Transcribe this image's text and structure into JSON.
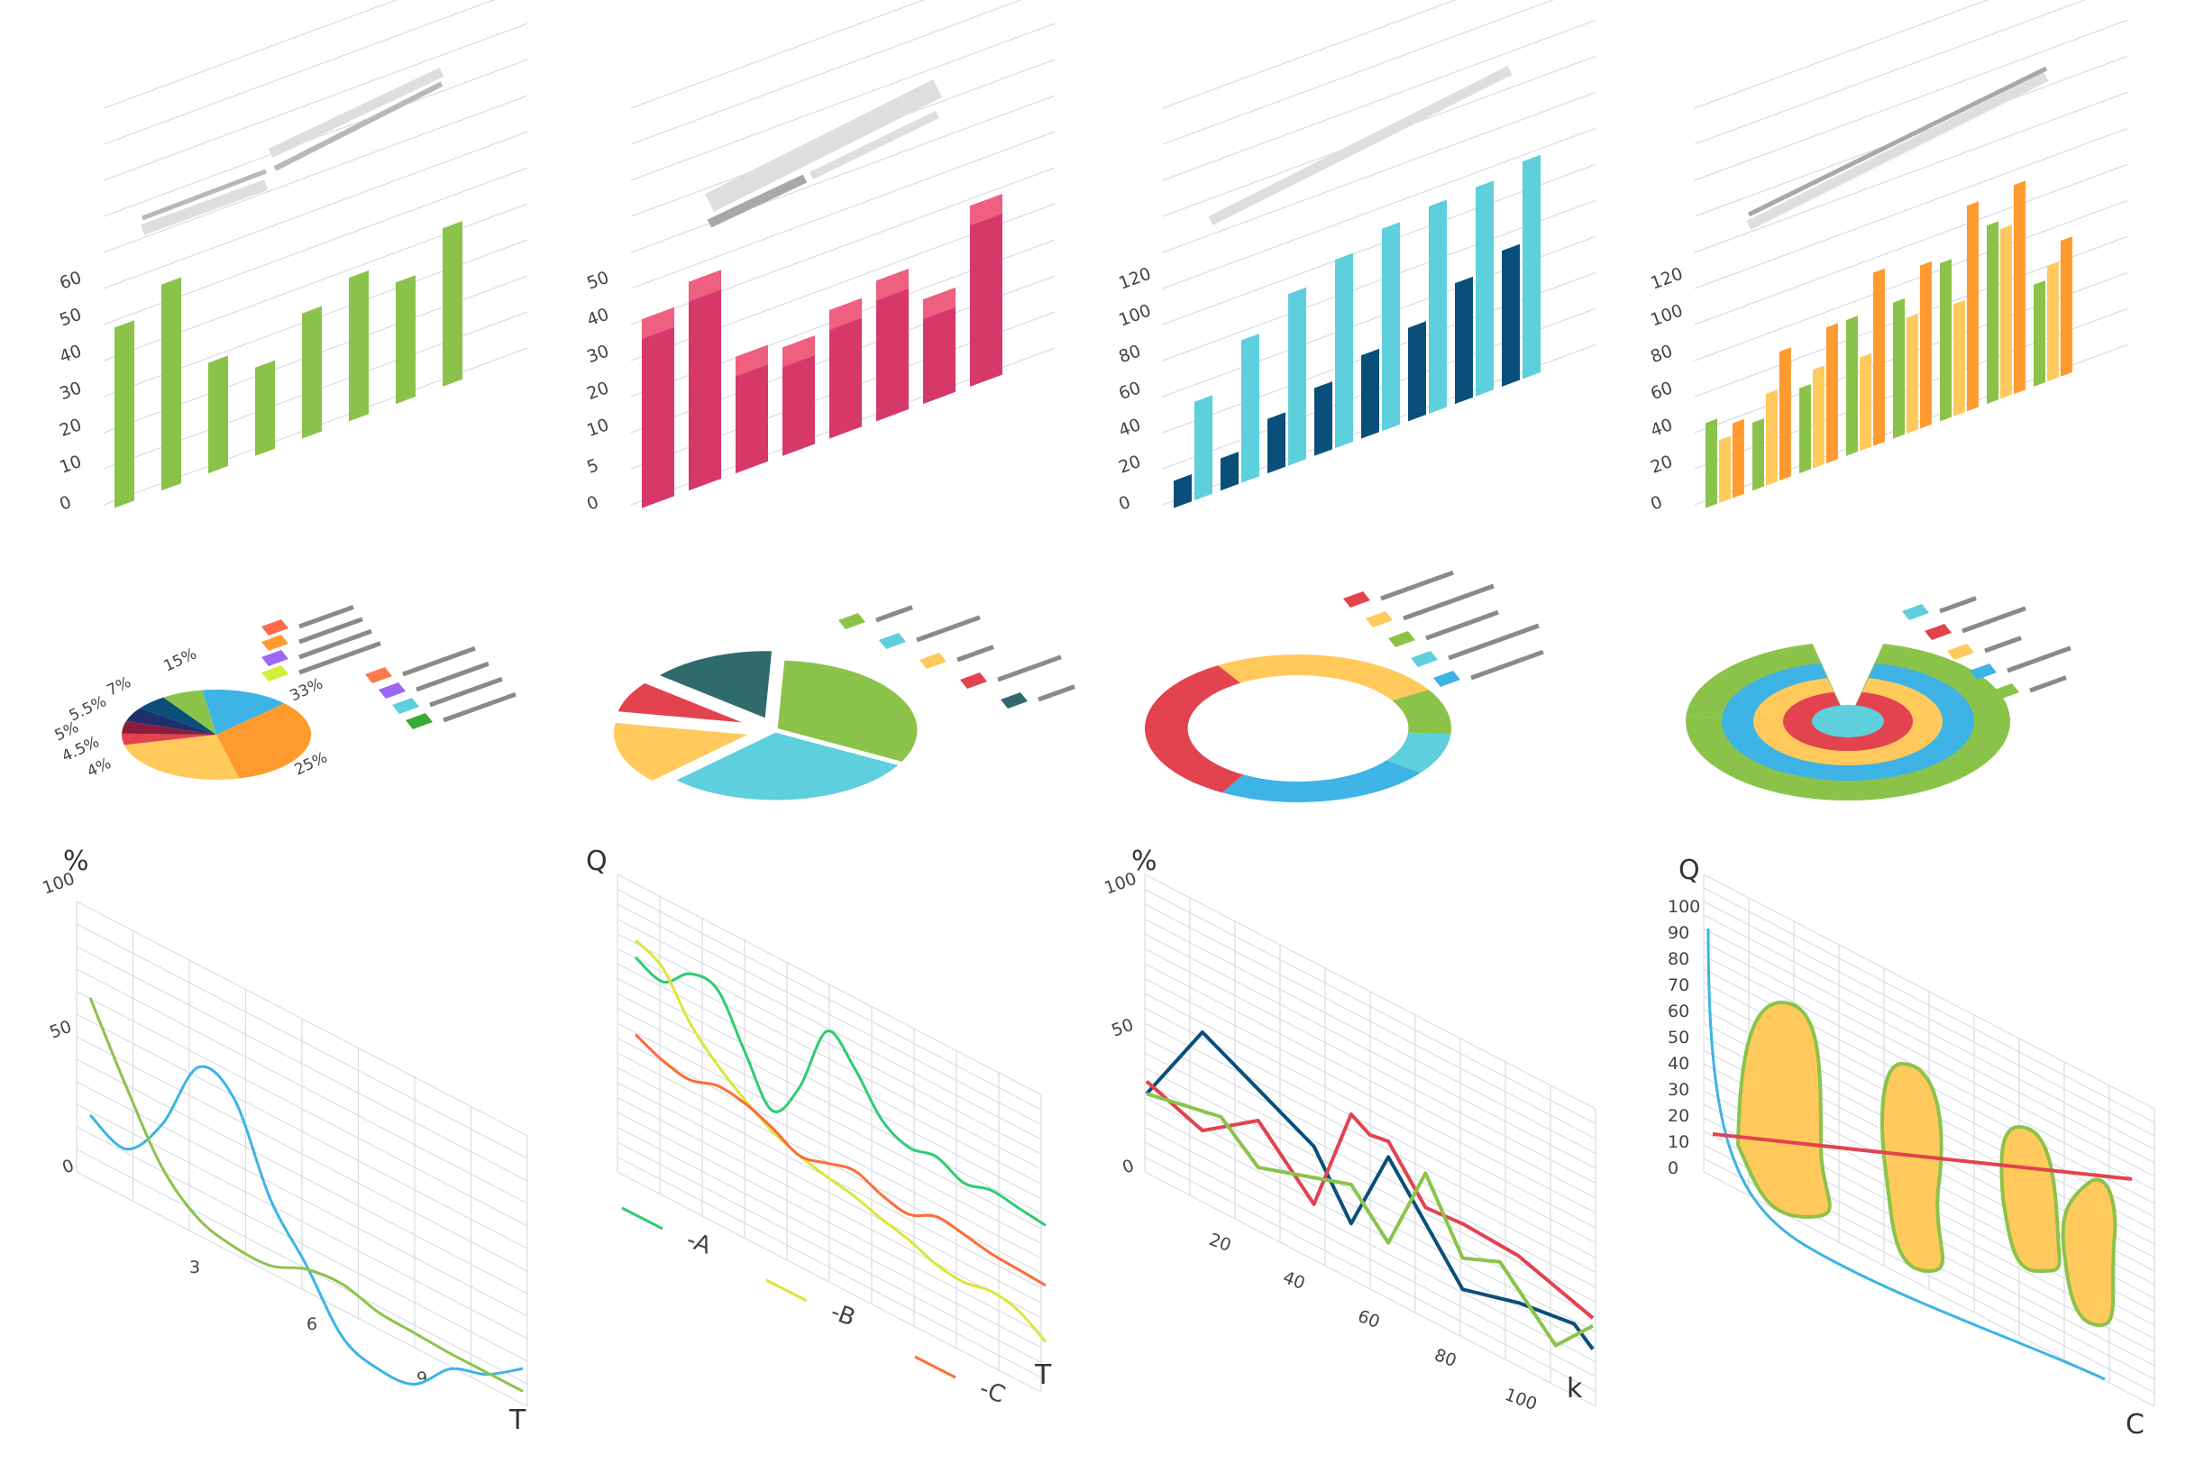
{
  "colors": {
    "green": "#8bc34a",
    "pink": "#d6386a",
    "pink_light": "#ef5f80",
    "cyan": "#5ecfdc",
    "navy": "#0a4f7a",
    "orange": "#ff9a2e",
    "yellow": "#ffc95c",
    "red": "#e3424f",
    "teal": "#2f6a6d",
    "blue": "#3db3e6",
    "purple": "#9c68f0",
    "grid": "#d9dde3",
    "legend_bar": "#8a8a8a"
  },
  "chart_data": [
    {
      "type": "bar",
      "title": "",
      "ylim": [
        0,
        60
      ],
      "y_ticks": [
        "0",
        "10",
        "20",
        "30",
        "40",
        "50",
        "60"
      ],
      "series": [
        {
          "values": [
            49,
            56,
            30,
            24,
            34,
            39,
            33,
            43
          ]
        }
      ]
    },
    {
      "type": "bar",
      "title": "",
      "ylim": [
        0,
        55
      ],
      "y_ticks": [
        "0",
        "5",
        "10",
        "20",
        "30",
        "40",
        "50"
      ],
      "series": [
        {
          "values": [
            47,
            52,
            29,
            27,
            32,
            35,
            26,
            45
          ]
        }
      ]
    },
    {
      "type": "bar",
      "title": "",
      "ylim": [
        0,
        130
      ],
      "y_ticks": [
        "0",
        "20",
        "40",
        "60",
        "80",
        "100",
        "120"
      ],
      "series": [
        {
          "values": [
            16,
            19,
            32,
            40,
            49,
            55,
            71,
            80
          ]
        },
        {
          "values": [
            58,
            84,
            101,
            111,
            119,
            122,
            123,
            128
          ]
        }
      ]
    },
    {
      "type": "bar",
      "title": "",
      "ylim": [
        0,
        130
      ],
      "y_ticks": [
        "0",
        "20",
        "40",
        "60",
        "80",
        "100",
        "120"
      ],
      "series": [
        {
          "values": [
            50,
            40,
            50,
            80,
            80,
            93,
            105,
            60
          ]
        },
        {
          "values": [
            37,
            54,
            58,
            55,
            68,
            66,
            100,
            68
          ]
        },
        {
          "values": [
            44,
            76,
            80,
            102,
            96,
            121,
            123,
            80
          ]
        }
      ]
    },
    {
      "type": "pie",
      "labels": [
        "15%",
        "33%",
        "25%",
        "4%",
        "4.5%",
        "5%",
        "5.5%",
        "7%"
      ],
      "values": [
        15,
        33,
        25,
        4,
        4.5,
        5,
        5.5,
        7
      ],
      "slice_colors": [
        "#3db3e6",
        "#ff9a2e",
        "#ffc95c",
        "#e3424f",
        "#8a1c3c",
        "#1f2f6e",
        "#0a4f7a",
        "#8bc34a"
      ]
    },
    {
      "type": "pie",
      "values": [
        32,
        30,
        15,
        8,
        15
      ],
      "slice_colors": [
        "#8bc34a",
        "#5ecfdc",
        "#ffc95c",
        "#e3424f",
        "#2f6a6d"
      ]
    },
    {
      "type": "pie",
      "values": [
        25,
        10,
        9,
        23,
        33
      ],
      "slice_colors": [
        "#ffc95c",
        "#8bc34a",
        "#5ecfdc",
        "#3db3e6",
        "#e3424f"
      ]
    },
    {
      "type": "pie",
      "rings": [
        "#8bc34a",
        "#3db3e6",
        "#ffc95c",
        "#e3424f",
        "#5ecfdc"
      ]
    },
    {
      "type": "line",
      "ylabel": "%",
      "xlabel": "T",
      "y_ticks": [
        "0",
        "50",
        "100"
      ],
      "x_ticks": [
        "3",
        "6",
        "9"
      ],
      "ylim": [
        0,
        100
      ],
      "xlim": [
        0,
        12
      ],
      "series": [
        {
          "color": "#3db3e6",
          "x": [
            0,
            1,
            2,
            3,
            4,
            5,
            6,
            7,
            8,
            9,
            10,
            11,
            12
          ],
          "y": [
            30,
            22,
            45,
            85,
            78,
            35,
            10,
            -18,
            -25,
            -23,
            -5,
            2,
            15
          ]
        },
        {
          "color": "#8bc34a",
          "x": [
            0,
            1,
            2,
            3,
            4,
            5,
            6,
            7,
            8,
            9,
            10,
            11,
            12
          ],
          "y": [
            92,
            55,
            22,
            5,
            0,
            0,
            8,
            10,
            5,
            4,
            3,
            3,
            3
          ]
        }
      ]
    },
    {
      "type": "line",
      "ylabel": "Q",
      "xlabel": "T",
      "series": [
        {
          "name": "A",
          "color": "#2ecc71",
          "x": [
            0,
            1,
            2,
            3,
            4,
            5,
            6,
            7,
            8,
            9,
            10,
            11,
            12,
            13,
            14,
            15
          ],
          "y": [
            70,
            64,
            77,
            76,
            48,
            22,
            44,
            85,
            72,
            50,
            42,
            45,
            38,
            42,
            40,
            38
          ]
        },
        {
          "name": "B",
          "color": "#dde53a",
          "x": [
            0,
            1,
            2,
            3,
            4,
            5,
            6,
            7,
            8,
            9,
            10,
            11,
            12,
            13,
            14,
            15
          ],
          "y": [
            80,
            72,
            48,
            32,
            20,
            10,
            4,
            0,
            -3,
            -8,
            -12,
            -18,
            -20,
            -17,
            -20,
            -30
          ]
        },
        {
          "name": "C",
          "color": "#ff6b35",
          "x": [
            0,
            1,
            2,
            3,
            4,
            5,
            6,
            7,
            8,
            9,
            10,
            11,
            12,
            13,
            14,
            15
          ],
          "y": [
            25,
            18,
            15,
            20,
            18,
            12,
            4,
            8,
            12,
            6,
            3,
            10,
            8,
            5,
            4,
            3
          ]
        }
      ]
    },
    {
      "type": "line",
      "ylabel": "%",
      "xlabel": "k",
      "y_ticks": [
        "0",
        "50",
        "100"
      ],
      "x_ticks": [
        "20",
        "40",
        "60",
        "80",
        "100"
      ],
      "ylim": [
        0,
        100
      ],
      "xlim": [
        0,
        120
      ],
      "series": [
        {
          "color": "#0a4f7a",
          "x": [
            0,
            15,
            45,
            55,
            65,
            85,
            100,
            115,
            120
          ],
          "y": [
            0,
            58,
            22,
            -15,
            40,
            -20,
            -10,
            -5,
            -15
          ]
        },
        {
          "color": "#e3424f",
          "x": [
            0,
            15,
            30,
            45,
            55,
            60,
            65,
            75,
            85,
            100,
            120
          ],
          "y": [
            8,
            -5,
            20,
            -15,
            55,
            48,
            50,
            20,
            22,
            20,
            5
          ]
        },
        {
          "color": "#8bc34a",
          "x": [
            0,
            20,
            30,
            45,
            55,
            65,
            75,
            85,
            95,
            110,
            120
          ],
          "y": [
            0,
            10,
            -10,
            2,
            10,
            -15,
            42,
            0,
            10,
            -25,
            0
          ]
        }
      ]
    },
    {
      "type": "area",
      "ylabel": "Q",
      "xlabel": "C",
      "y_ticks": [
        "0",
        "10",
        "20",
        "30",
        "40",
        "50",
        "60",
        "70",
        "80",
        "90",
        "100"
      ],
      "ylim": [
        0,
        100
      ],
      "xlim": [
        0,
        12
      ]
    }
  ]
}
